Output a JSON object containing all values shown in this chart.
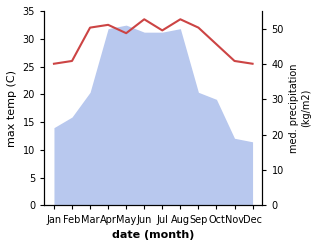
{
  "months": [
    "Jan",
    "Feb",
    "Mar",
    "Apr",
    "May",
    "Jun",
    "Jul",
    "Aug",
    "Sep",
    "Oct",
    "Nov",
    "Dec"
  ],
  "temperature": [
    25.5,
    26.0,
    32.0,
    32.5,
    31.0,
    33.5,
    31.5,
    33.5,
    32.0,
    29.0,
    26.0,
    25.5
  ],
  "rainfall": [
    22,
    25,
    32,
    50,
    51,
    49,
    49,
    50,
    32,
    30,
    19,
    18
  ],
  "temp_color": "#cc4444",
  "rain_color": "#b8c8ee",
  "ylabel_left": "max temp (C)",
  "ylabel_right": "med. precipitation\n(kg/m2)",
  "xlabel": "date (month)",
  "ylim_left": [
    0,
    35
  ],
  "ylim_right": [
    0,
    55
  ],
  "yticks_left": [
    0,
    5,
    10,
    15,
    20,
    25,
    30,
    35
  ],
  "yticks_right": [
    0,
    10,
    20,
    30,
    40,
    50
  ],
  "background_color": "#ffffff"
}
